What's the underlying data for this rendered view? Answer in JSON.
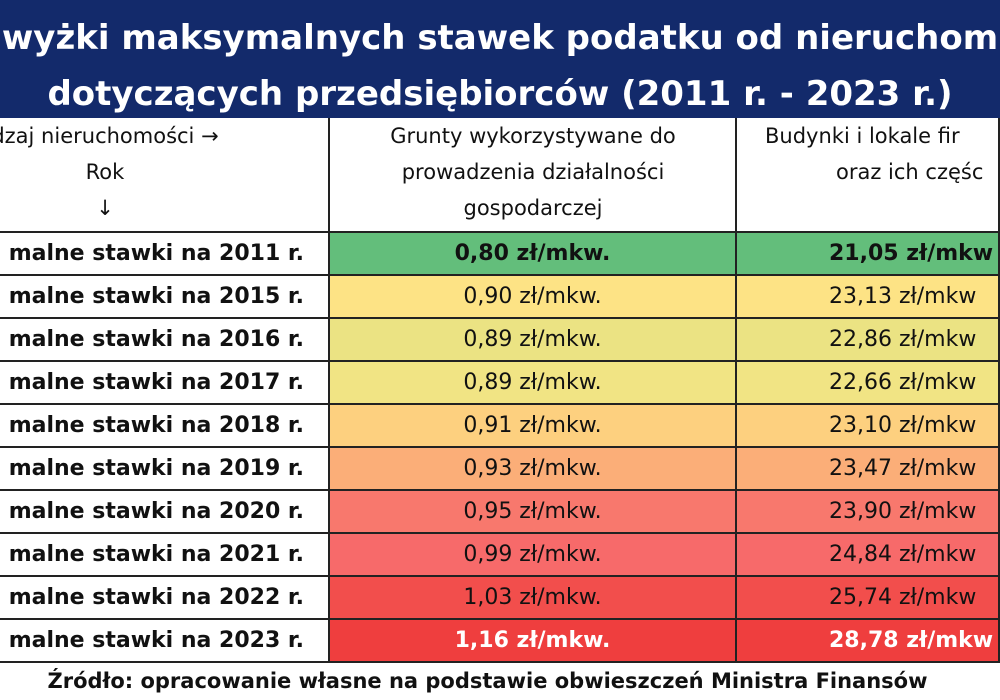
{
  "title": [
    "wyżki maksymalnych stawek podatku od nieruchom",
    "dotyczących przedsiębiorców (2011 r. - 2023 r.)"
  ],
  "table": {
    "header": [
      [
        "dzaj nieruchomości →",
        "Rok",
        "↓"
      ],
      [
        "Grunty wykorzystywane do",
        "prowadzenia działalności",
        "gospodarczej"
      ],
      [
        "Budynki i lokale fir",
        "oraz ich częśc"
      ]
    ],
    "rows": [
      [
        "malne stawki na 2011 r.",
        "0,80 zł/mkw.",
        "21,05 zł/mkw"
      ],
      [
        "malne stawki na 2015 r.",
        "0,90 zł/mkw.",
        "23,13 zł/mkw"
      ],
      [
        "malne stawki na 2016 r.",
        "0,89 zł/mkw.",
        "22,86 zł/mkw"
      ],
      [
        "malne stawki na 2017 r.",
        "0,89 zł/mkw.",
        "22,66 zł/mkw"
      ],
      [
        "malne stawki na 2018 r.",
        "0,91 zł/mkw.",
        "23,10 zł/mkw"
      ],
      [
        "malne stawki na 2019 r.",
        "0,93 zł/mkw.",
        "23,47 zł/mkw"
      ],
      [
        "malne stawki na 2020 r.",
        "0,95 zł/mkw.",
        "23,90 zł/mkw"
      ],
      [
        "malne stawki na 2021 r.",
        "0,99 zł/mkw.",
        "24,84 zł/mkw"
      ],
      [
        "malne stawki na 2022 r.",
        "1,03 zł/mkw.",
        "25,74 zł/mkw"
      ],
      [
        "malne stawki na 2023 r.",
        "1,16 zł/mkw.",
        "28,78 zł/mkw"
      ]
    ]
  },
  "source": "Źródło: opracowanie własne na podstawie obwieszczeń Ministra Finansów"
}
